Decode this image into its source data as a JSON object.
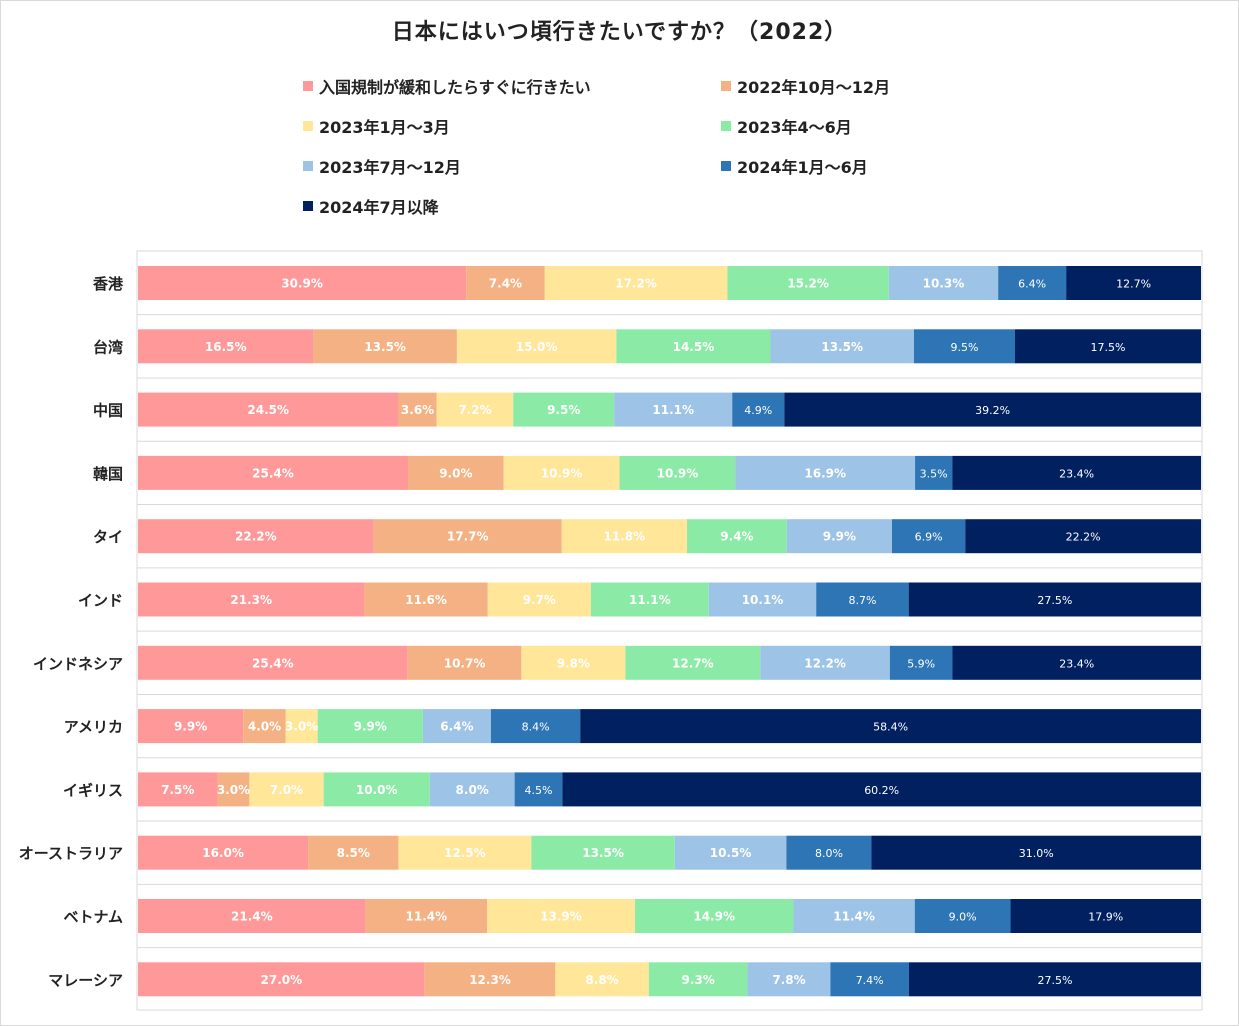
{
  "chart_data": {
    "type": "bar",
    "orientation": "horizontal",
    "stacked": "100%",
    "title": "日本にはいつ頃行きたいですか？（2022）",
    "categories": [
      "香港",
      "台湾",
      "中国",
      "韓国",
      "タイ",
      "インド",
      "インドネシア",
      "アメリカ",
      "イギリス",
      "オーストラリア",
      "ベトナム",
      "マレーシア"
    ],
    "series": [
      {
        "name": "入国規制が緩和したらすぐに行きたい",
        "color": "#FF9999",
        "label_color": "#ffffff",
        "values": [
          30.9,
          16.5,
          24.5,
          25.4,
          22.2,
          21.3,
          25.4,
          9.9,
          7.5,
          16.0,
          21.4,
          27.0
        ]
      },
      {
        "name": "2022年10月～12月",
        "color": "#F4B183",
        "label_color": "#ffffff",
        "values": [
          7.4,
          13.5,
          3.6,
          9.0,
          17.7,
          11.6,
          10.7,
          4.0,
          3.0,
          8.5,
          11.4,
          12.3
        ]
      },
      {
        "name": "2023年1月～3月",
        "color": "#FFE699",
        "label_color": "#ffffff",
        "values": [
          17.2,
          15.0,
          7.2,
          10.9,
          11.8,
          9.7,
          9.8,
          3.0,
          7.0,
          12.5,
          13.9,
          8.8
        ]
      },
      {
        "name": "2023年4～6月",
        "color": "#8BEBA6",
        "label_color": "#ffffff",
        "values": [
          15.2,
          14.5,
          9.5,
          10.9,
          9.4,
          11.1,
          12.7,
          9.9,
          10.0,
          13.5,
          14.9,
          9.3
        ]
      },
      {
        "name": "2023年7月～12月",
        "color": "#9DC3E6",
        "label_color": "#ffffff",
        "values": [
          10.3,
          13.5,
          11.1,
          16.9,
          9.9,
          10.1,
          12.2,
          6.4,
          8.0,
          10.5,
          11.4,
          7.8
        ]
      },
      {
        "name": "2024年1月～6月",
        "color": "#2E75B6",
        "label_color": "#ffffff",
        "values": [
          6.4,
          9.5,
          4.9,
          3.5,
          6.9,
          8.7,
          5.9,
          8.4,
          4.5,
          8.0,
          9.0,
          7.4
        ]
      },
      {
        "name": "2024年7月以降",
        "color": "#002060",
        "label_color": "#ffffff",
        "values": [
          12.7,
          17.5,
          39.2,
          23.4,
          22.2,
          27.5,
          23.4,
          58.4,
          60.2,
          31.0,
          17.9,
          27.5
        ]
      }
    ],
    "value_suffix": "%",
    "xlim": [
      0,
      100
    ],
    "legend_position": "top",
    "grid": true
  }
}
